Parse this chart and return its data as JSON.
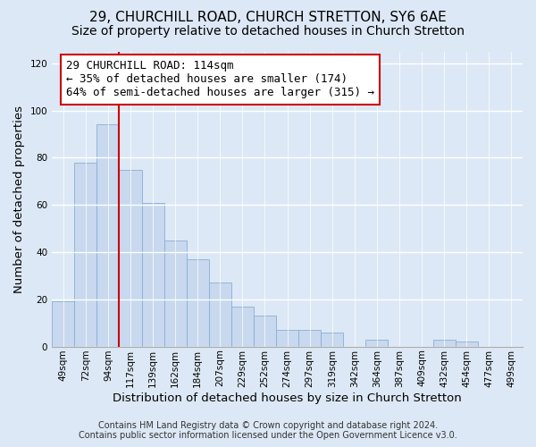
{
  "title": "29, CHURCHILL ROAD, CHURCH STRETTON, SY6 6AE",
  "subtitle": "Size of property relative to detached houses in Church Stretton",
  "xlabel": "Distribution of detached houses by size in Church Stretton",
  "ylabel": "Number of detached properties",
  "bar_labels": [
    "49sqm",
    "72sqm",
    "94sqm",
    "117sqm",
    "139sqm",
    "162sqm",
    "184sqm",
    "207sqm",
    "229sqm",
    "252sqm",
    "274sqm",
    "297sqm",
    "319sqm",
    "342sqm",
    "364sqm",
    "387sqm",
    "409sqm",
    "432sqm",
    "454sqm",
    "477sqm",
    "499sqm"
  ],
  "bar_values": [
    19,
    78,
    94,
    75,
    61,
    45,
    37,
    27,
    17,
    13,
    7,
    7,
    6,
    0,
    3,
    0,
    0,
    3,
    2,
    0,
    0
  ],
  "bar_color": "#c8d8ee",
  "bar_edge_color": "#8aaed4",
  "vline_color": "#cc0000",
  "annotation_text": "29 CHURCHILL ROAD: 114sqm\n← 35% of detached houses are smaller (174)\n64% of semi-detached houses are larger (315) →",
  "annotation_box_color": "#ffffff",
  "annotation_box_edge": "#cc0000",
  "ylim": [
    0,
    125
  ],
  "yticks": [
    0,
    20,
    40,
    60,
    80,
    100,
    120
  ],
  "footer_line1": "Contains HM Land Registry data © Crown copyright and database right 2024.",
  "footer_line2": "Contains public sector information licensed under the Open Government Licence v3.0.",
  "bg_color": "#dce8f5",
  "plot_bg_color": "#dce8f5",
  "title_fontsize": 11,
  "subtitle_fontsize": 10,
  "axis_label_fontsize": 9.5,
  "tick_fontsize": 7.5,
  "annotation_fontsize": 9,
  "footer_fontsize": 7
}
